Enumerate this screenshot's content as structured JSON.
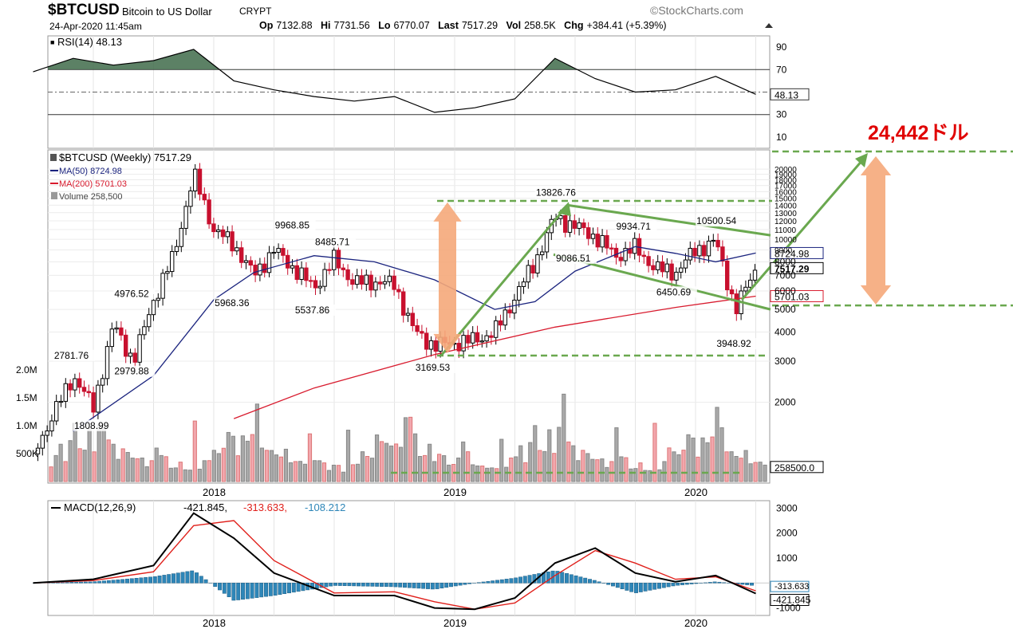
{
  "header": {
    "symbol": "$BTCUSD",
    "name": "Bitcoin to US Dollar",
    "exchange": "CRYPT",
    "brand": "©StockCharts.com",
    "datetime": "24-Apr-2020 11:45am",
    "op_label": "Op",
    "op": "7132.88",
    "hi_label": "Hi",
    "hi": "7731.56",
    "lo_label": "Lo",
    "lo": "6770.07",
    "last_label": "Last",
    "last": "7517.29",
    "vol_label": "Vol",
    "vol": "258.5K",
    "chg_label": "Chg",
    "chg": "+384.41 (+5.39%)"
  },
  "annotation": {
    "target_label": "24,442ドル"
  },
  "colors": {
    "up": "#000000",
    "down": "#c8102e",
    "ma50": "#1a237e",
    "ma200": "#d81b2e",
    "rsi": "#000000",
    "rsi_fill": "#3f6b4a",
    "macd": "#000000",
    "signal": "#e0201b",
    "hist": "#2e86b8",
    "vol_up": "#a9a9a9",
    "vol_down": "#f2a7ad",
    "annotation_green": "#6aa84f",
    "annotation_orange": "#f5a97a",
    "target_red": "#e00000"
  },
  "chart_data": [
    {
      "type": "line",
      "panel": "RSI",
      "legend": "RSI(14) 48.13",
      "value_tag": "48.13",
      "ylim": [
        0,
        100
      ],
      "yticks": [
        "90",
        "70",
        "30",
        "10"
      ],
      "reference_lines": [
        70,
        30
      ],
      "x": [
        "2017-04",
        "2017-06",
        "2017-08",
        "2017-10",
        "2017-12",
        "2018-02",
        "2018-04",
        "2018-06",
        "2018-08",
        "2018-10",
        "2018-12",
        "2019-02",
        "2019-04",
        "2019-06",
        "2019-08",
        "2019-10",
        "2019-12",
        "2020-02",
        "2020-04"
      ],
      "values": [
        68,
        80,
        74,
        78,
        88,
        60,
        52,
        46,
        42,
        46,
        32,
        36,
        44,
        80,
        62,
        50,
        52,
        64,
        48
      ]
    },
    {
      "type": "candlestick",
      "panel": "Price",
      "scale": "log",
      "legend": [
        "$BTCUSD (Weekly) 7517.29",
        "MA(50) 8724.98",
        "MA(200) 5701.03",
        "Volume 258,500"
      ],
      "ylim": [
        1500,
        22000
      ],
      "yticks": [
        "20000",
        "19000",
        "18000",
        "17000",
        "16000",
        "15000",
        "14000",
        "13000",
        "12000",
        "11000",
        "10000",
        "9000",
        "8000",
        "7000",
        "6000",
        "5000",
        "4000",
        "3000",
        "2000"
      ],
      "xticks": [
        "2018",
        "2019",
        "2020"
      ],
      "volume_ticks": [
        "2.0M",
        "1.5M",
        "1.0M",
        "500K"
      ],
      "value_tags": {
        "ma50": "8724.98",
        "last": "7517.29",
        "ma200": "5701.03",
        "volume": "258500.0"
      },
      "price_path": [
        [
          "2017-04",
          1200
        ],
        [
          "2017-06",
          2600
        ],
        [
          "2017-07",
          1900
        ],
        [
          "2017-08",
          4300
        ],
        [
          "2017-09",
          3000
        ],
        [
          "2017-10",
          5500
        ],
        [
          "2017-11",
          8500
        ],
        [
          "2017-12",
          19000
        ],
        [
          "2018-01",
          11000
        ],
        [
          "2018-02",
          9500
        ],
        [
          "2018-03",
          7000
        ],
        [
          "2018-04",
          9000
        ],
        [
          "2018-05",
          7500
        ],
        [
          "2018-06",
          6200
        ],
        [
          "2018-07",
          8200
        ],
        [
          "2018-08",
          6500
        ],
        [
          "2018-09",
          6600
        ],
        [
          "2018-10",
          6400
        ],
        [
          "2018-11",
          4000
        ],
        [
          "2018-12",
          3500
        ],
        [
          "2019-02",
          3700
        ],
        [
          "2019-03",
          4000
        ],
        [
          "2019-05",
          8000
        ],
        [
          "2019-06",
          12500
        ],
        [
          "2019-08",
          10300
        ],
        [
          "2019-09",
          8500
        ],
        [
          "2019-10",
          9200
        ],
        [
          "2019-11",
          7500
        ],
        [
          "2019-12",
          7200
        ],
        [
          "2020-01",
          9000
        ],
        [
          "2020-02",
          9800
        ],
        [
          "2020-03",
          5000
        ],
        [
          "2020-04",
          7517
        ]
      ],
      "ma50_path": [
        [
          "2017-06",
          1500
        ],
        [
          "2017-10",
          2600
        ],
        [
          "2018-01",
          5500
        ],
        [
          "2018-03",
          7200
        ],
        [
          "2018-06",
          8500
        ],
        [
          "2018-09",
          8000
        ],
        [
          "2018-12",
          6700
        ],
        [
          "2019-03",
          5000
        ],
        [
          "2019-05",
          5400
        ],
        [
          "2019-07",
          7300
        ],
        [
          "2019-10",
          9300
        ],
        [
          "2019-12",
          8700
        ],
        [
          "2020-02",
          8000
        ],
        [
          "2020-04",
          8725
        ]
      ],
      "ma200_path": [
        [
          "2018-02",
          1700
        ],
        [
          "2018-06",
          2300
        ],
        [
          "2018-12",
          3200
        ],
        [
          "2019-06",
          4200
        ],
        [
          "2019-12",
          5100
        ],
        [
          "2020-04",
          5701
        ]
      ],
      "labels": [
        {
          "text": "2781.76",
          "date": "2017-06",
          "price": 3100
        },
        {
          "text": "1808.99",
          "date": "2017-07",
          "price": 1550
        },
        {
          "text": "4976.52",
          "date": "2017-09",
          "price": 5700
        },
        {
          "text": "2979.88",
          "date": "2017-09",
          "price": 2650
        },
        {
          "text": "5968.36",
          "date": "2018-02",
          "price": 5200
        },
        {
          "text": "9968.85",
          "date": "2018-05",
          "price": 11200
        },
        {
          "text": "8485.71",
          "date": "2018-07",
          "price": 9500
        },
        {
          "text": "5537.86",
          "date": "2018-06",
          "price": 4850
        },
        {
          "text": "3169.53",
          "date": "2018-12",
          "price": 2750
        },
        {
          "text": "13826.76",
          "date": "2019-06",
          "price": 15500
        },
        {
          "text": "9086.51",
          "date": "2019-07",
          "price": 8100
        },
        {
          "text": "9934.71",
          "date": "2019-10",
          "price": 11100
        },
        {
          "text": "10500.54",
          "date": "2020-02",
          "price": 11700
        },
        {
          "text": "6450.69",
          "date": "2019-12",
          "price": 5800
        },
        {
          "text": "3948.92",
          "date": "2020-03",
          "price": 3480
        }
      ],
      "volume_sample": [
        0.35,
        0.5,
        0.6,
        0.45,
        0.75,
        0.9,
        0.7,
        0.55,
        0.8,
        0.6,
        0.95,
        1.3,
        0.8,
        0.6,
        0.5,
        0.6,
        0.45,
        0.5,
        0.4,
        0.35,
        0.3,
        0.35,
        0.8,
        0.5,
        0.4,
        0.3,
        0.25,
        0.3,
        0.25,
        0.2,
        0.9,
        0.25
      ]
    },
    {
      "type": "line",
      "panel": "MACD",
      "legend": "MACD(12,26,9)",
      "macd_value": "-421.845",
      "signal_value": "-313.633",
      "hist_value": "-108.212",
      "value_tags": {
        "signal": "-313.633",
        "macd": "-421.845"
      },
      "ylim": [
        -1300,
        3300
      ],
      "yticks": [
        "3000",
        "2000",
        "1000",
        "-1000"
      ],
      "xticks": [
        "2018",
        "2019",
        "2020"
      ],
      "x": [
        "2017-04",
        "2017-07",
        "2017-10",
        "2017-12",
        "2018-02",
        "2018-04",
        "2018-07",
        "2018-10",
        "2018-12",
        "2019-02",
        "2019-04",
        "2019-06",
        "2019-08",
        "2019-10",
        "2019-12",
        "2020-02",
        "2020-04"
      ],
      "macd": [
        0,
        150,
        700,
        2800,
        1800,
        400,
        -500,
        -500,
        -1000,
        -1050,
        -600,
        800,
        1400,
        400,
        50,
        300,
        -422
      ],
      "signal": [
        0,
        100,
        450,
        2300,
        2500,
        900,
        -400,
        -350,
        -750,
        -1050,
        -800,
        300,
        1300,
        800,
        150,
        250,
        -314
      ]
    }
  ]
}
